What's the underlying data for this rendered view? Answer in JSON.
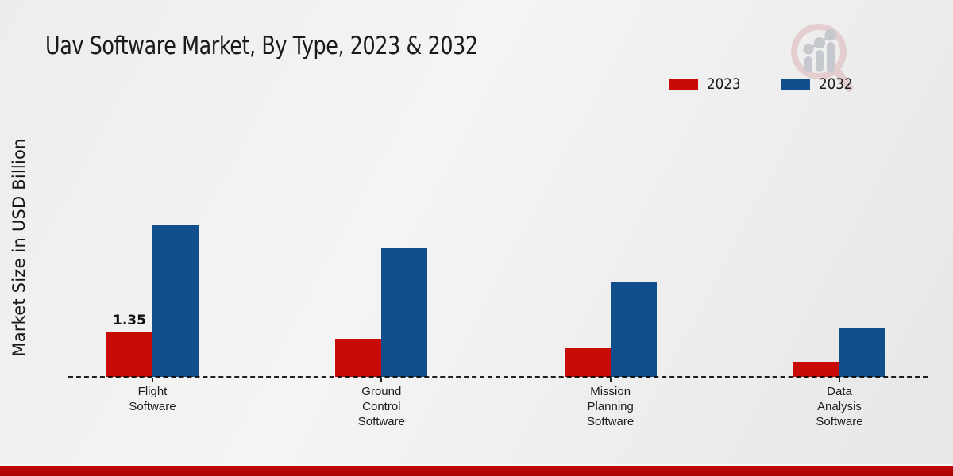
{
  "title": "Uav Software Market, By Type, 2023 & 2032",
  "y_axis_label": "Market Size in USD Billion",
  "legend": {
    "items": [
      {
        "label": "2023",
        "color": "#c90b07"
      },
      {
        "label": "2032",
        "color": "#134e8c"
      }
    ]
  },
  "logo": {
    "name": "market-research-magnifier-logo"
  },
  "footer": {
    "stripe_color": "#b20404"
  },
  "chart_data": {
    "type": "bar",
    "title": "Uav Software Market, By Type, 2023 & 2032",
    "ylabel": "Market Size in USD Billion",
    "xlabel": "",
    "categories": [
      [
        "Flight",
        "Software"
      ],
      [
        "Ground",
        "Control",
        "Software"
      ],
      [
        "Mission",
        "Planning",
        "Software"
      ],
      [
        "Data",
        "Analysis",
        "Software"
      ]
    ],
    "series": [
      {
        "name": "2023",
        "color": "#c90b07",
        "values": [
          1.35,
          1.15,
          0.87,
          0.45
        ]
      },
      {
        "name": "2032",
        "color": "#134e8c",
        "values": [
          4.6,
          3.9,
          2.85,
          1.5
        ]
      }
    ],
    "data_labels": [
      {
        "series": "2023",
        "category_index": 0,
        "text": "1.35"
      }
    ],
    "ylim": [
      0,
      5
    ],
    "grid": false,
    "y_ticks_visible": false,
    "legend_position": "top-right",
    "baseline_style": "dashed"
  }
}
